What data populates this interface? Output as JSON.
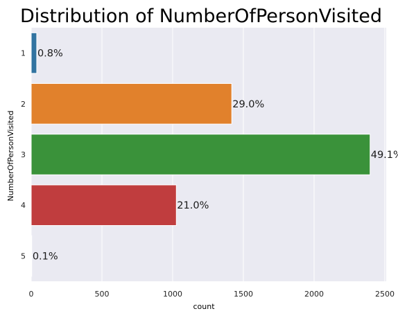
{
  "chart_data": {
    "type": "bar",
    "orientation": "horizontal",
    "title": "Distribution of NumberOfPersonVisited",
    "xlabel": "count",
    "ylabel": "NumberOfPersonVisited",
    "categories": [
      "1",
      "2",
      "3",
      "4",
      "5"
    ],
    "values": [
      39,
      1418,
      2396,
      1026,
      4
    ],
    "data_labels": [
      "0.8%",
      "29.0%",
      "49.1%",
      "21.0%",
      "0.1%"
    ],
    "colors": [
      "#3274a1",
      "#e1812c",
      "#3a923a",
      "#c03d3e",
      "#9372b2"
    ],
    "xlim": [
      0,
      2510
    ],
    "xticks": [
      0,
      500,
      1000,
      1500,
      2000,
      2500
    ],
    "grid": true,
    "background": "#eaeaf2"
  }
}
